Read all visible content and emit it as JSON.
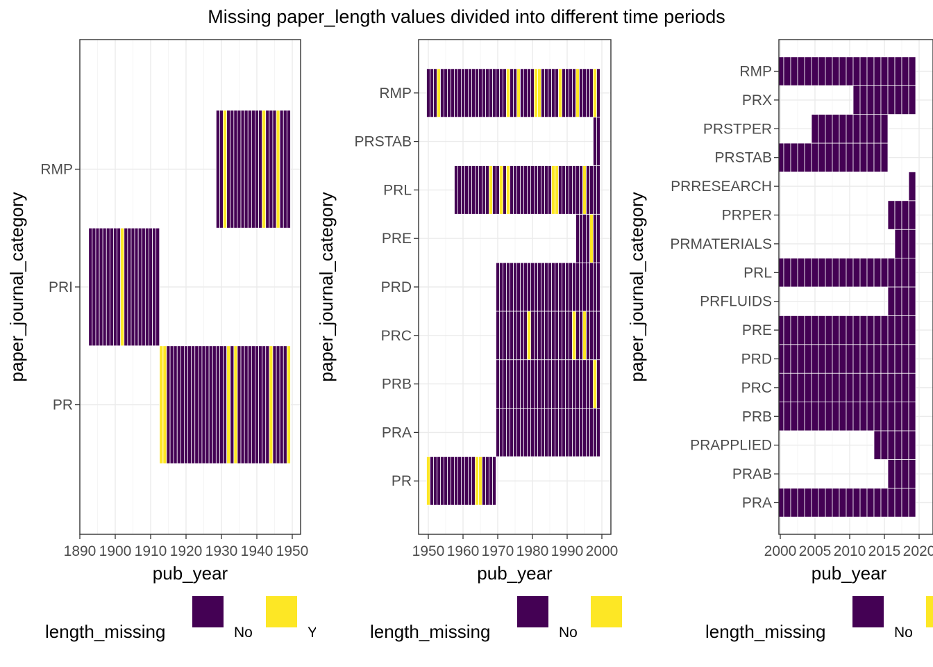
{
  "colors": {
    "no": "#440154",
    "yes": "#FDE725",
    "panel_border": "#333333",
    "grid_major": "#EBEBEB",
    "grid_minor": "#F5F5F5",
    "tick_text": "#4D4D4D",
    "bar_outline": "#FFFFFF"
  },
  "chart_data": {
    "title": "Missing paper_length values divided into different time periods",
    "legend": {
      "title": "length_missing",
      "entries": [
        {
          "label": "No",
          "color": "#440154"
        },
        {
          "label": "Yes",
          "color": "#FDE725"
        }
      ]
    },
    "panels": [
      {
        "type": "heatmap",
        "xlabel": "pub_year",
        "ylabel": "paper_journal_category",
        "xlim": [
          1890,
          1950
        ],
        "xticks": [
          1890,
          1900,
          1910,
          1920,
          1930,
          1940,
          1950
        ],
        "categories": [
          "PR",
          "PRI",
          "RMP"
        ],
        "rows": [
          {
            "category": "PR",
            "start": 1913,
            "end": 1949,
            "yes_years": [
              1913,
              1914,
              1932,
              1934,
              1944,
              1949
            ]
          },
          {
            "category": "PRI",
            "start": 1893,
            "end": 1912,
            "yes_years": [
              1902
            ]
          },
          {
            "category": "RMP",
            "start": 1929,
            "end": 1949,
            "yes_years": [
              1931,
              1942,
              1946
            ]
          }
        ]
      },
      {
        "type": "heatmap",
        "xlabel": "pub_year",
        "ylabel": "paper_journal_category",
        "xlim": [
          1950,
          2000
        ],
        "xticks": [
          1950,
          1960,
          1970,
          1980,
          1990,
          2000
        ],
        "categories": [
          "PR",
          "PRA",
          "PRB",
          "PRC",
          "PRD",
          "PRE",
          "PRL",
          "PRSTAB",
          "RMP"
        ],
        "rows": [
          {
            "category": "PR",
            "start": 1950,
            "end": 1969,
            "yes_years": [
              1950,
              1964,
              1965
            ]
          },
          {
            "category": "PRA",
            "start": 1970,
            "end": 1999,
            "yes_years": []
          },
          {
            "category": "PRB",
            "start": 1970,
            "end": 1999,
            "yes_years": [
              1998
            ]
          },
          {
            "category": "PRC",
            "start": 1970,
            "end": 1999,
            "yes_years": [
              1979,
              1992,
              1995
            ]
          },
          {
            "category": "PRD",
            "start": 1970,
            "end": 1999,
            "yes_years": []
          },
          {
            "category": "PRE",
            "start": 1993,
            "end": 1999,
            "yes_years": [
              1997
            ]
          },
          {
            "category": "PRL",
            "start": 1958,
            "end": 1999,
            "yes_years": [
              1968,
              1971,
              1973,
              1986,
              1987,
              1995
            ]
          },
          {
            "category": "PRSTAB",
            "start": 1998,
            "end": 1999,
            "yes_years": []
          },
          {
            "category": "RMP",
            "start": 1950,
            "end": 1999,
            "yes_years": [
              1953,
              1973,
              1976,
              1981,
              1982,
              1988,
              1993,
              1998
            ]
          }
        ]
      },
      {
        "type": "heatmap",
        "xlabel": "pub_year",
        "ylabel": "paper_journal_category",
        "xlim": [
          2000,
          2020
        ],
        "xticks": [
          2000,
          2005,
          2010,
          2015,
          2020
        ],
        "categories": [
          "PRA",
          "PRAB",
          "PRAPPLIED",
          "PRB",
          "PRC",
          "PRD",
          "PRE",
          "PRFLUIDS",
          "PRL",
          "PRMATERIALS",
          "PRPER",
          "PRRESEARCH",
          "PRSTAB",
          "PRSTPER",
          "PRX",
          "RMP"
        ],
        "rows": [
          {
            "category": "PRA",
            "start": 2000,
            "end": 2019,
            "yes_years": []
          },
          {
            "category": "PRAB",
            "start": 2016,
            "end": 2019,
            "yes_years": []
          },
          {
            "category": "PRAPPLIED",
            "start": 2014,
            "end": 2019,
            "yes_years": []
          },
          {
            "category": "PRB",
            "start": 2000,
            "end": 2019,
            "yes_years": []
          },
          {
            "category": "PRC",
            "start": 2000,
            "end": 2019,
            "yes_years": []
          },
          {
            "category": "PRD",
            "start": 2000,
            "end": 2019,
            "yes_years": []
          },
          {
            "category": "PRE",
            "start": 2000,
            "end": 2019,
            "yes_years": []
          },
          {
            "category": "PRFLUIDS",
            "start": 2016,
            "end": 2019,
            "yes_years": []
          },
          {
            "category": "PRL",
            "start": 2000,
            "end": 2019,
            "yes_years": []
          },
          {
            "category": "PRMATERIALS",
            "start": 2017,
            "end": 2019,
            "yes_years": []
          },
          {
            "category": "PRPER",
            "start": 2016,
            "end": 2019,
            "yes_years": []
          },
          {
            "category": "PRRESEARCH",
            "start": 2019,
            "end": 2019,
            "yes_years": []
          },
          {
            "category": "PRSTAB",
            "start": 2000,
            "end": 2015,
            "yes_years": []
          },
          {
            "category": "PRSTPER",
            "start": 2005,
            "end": 2015,
            "yes_years": []
          },
          {
            "category": "PRX",
            "start": 2011,
            "end": 2019,
            "yes_years": []
          },
          {
            "category": "RMP",
            "start": 2000,
            "end": 2019,
            "yes_years": []
          }
        ]
      }
    ]
  }
}
